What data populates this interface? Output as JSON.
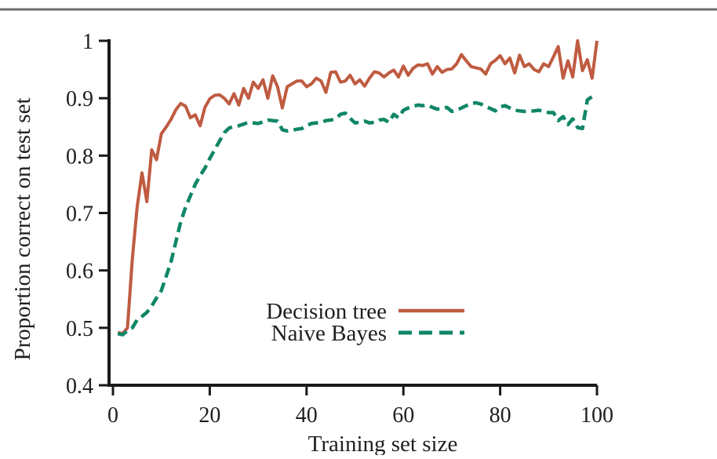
{
  "page": {
    "background": "#ffffff",
    "top_rule_color": "#6b6b6b",
    "axis_color": "#1a1a1a",
    "text_color": "#1f1f1f"
  },
  "chart_data": {
    "type": "line",
    "title": "",
    "xlabel": "Training set size",
    "ylabel": "Proportion correct on test set",
    "xlim": [
      0,
      100
    ],
    "ylim": [
      0.4,
      1.0
    ],
    "grid": false,
    "legend_position": "inside-bottom-center",
    "x_ticks": [
      0,
      20,
      40,
      60,
      80,
      100
    ],
    "x_tick_labels": [
      "0",
      "20",
      "40",
      "60",
      "80",
      "100"
    ],
    "y_ticks": [
      1.0,
      0.9,
      0.8,
      0.7,
      0.6,
      0.5,
      0.4
    ],
    "y_tick_labels": [
      "1",
      "0.9",
      "0.8",
      "0.7",
      "0.6",
      "0.5",
      "0.4"
    ],
    "x_range": {
      "from": 1,
      "to": 100,
      "step": 1
    },
    "series": [
      {
        "name": "Decision tree",
        "color": "#bf5b41",
        "style": "solid",
        "values": [
          0.492,
          0.49,
          0.5,
          0.62,
          0.71,
          0.77,
          0.72,
          0.81,
          0.793,
          0.838,
          0.85,
          0.863,
          0.88,
          0.891,
          0.886,
          0.866,
          0.871,
          0.852,
          0.884,
          0.899,
          0.905,
          0.906,
          0.9,
          0.89,
          0.908,
          0.888,
          0.917,
          0.9,
          0.928,
          0.917,
          0.932,
          0.9,
          0.939,
          0.92,
          0.883,
          0.92,
          0.925,
          0.93,
          0.93,
          0.92,
          0.925,
          0.935,
          0.93,
          0.91,
          0.945,
          0.946,
          0.928,
          0.93,
          0.94,
          0.925,
          0.932,
          0.921,
          0.935,
          0.946,
          0.944,
          0.937,
          0.944,
          0.949,
          0.937,
          0.956,
          0.94,
          0.952,
          0.958,
          0.957,
          0.96,
          0.942,
          0.955,
          0.945,
          0.95,
          0.951,
          0.96,
          0.976,
          0.965,
          0.955,
          0.953,
          0.951,
          0.942,
          0.96,
          0.966,
          0.974,
          0.96,
          0.97,
          0.944,
          0.975,
          0.955,
          0.96,
          0.95,
          0.946,
          0.96,
          0.955,
          0.972,
          0.99,
          0.935,
          0.965,
          0.937,
          1.0,
          0.948,
          0.967,
          0.935,
          1.0
        ]
      },
      {
        "name": "Naive Bayes",
        "color": "#108667",
        "style": "dashed",
        "values": [
          0.49,
          0.488,
          0.495,
          0.5,
          0.514,
          0.52,
          0.527,
          0.538,
          0.552,
          0.565,
          0.59,
          0.615,
          0.65,
          0.685,
          0.71,
          0.73,
          0.75,
          0.765,
          0.778,
          0.795,
          0.81,
          0.825,
          0.84,
          0.848,
          0.851,
          0.852,
          0.855,
          0.858,
          0.857,
          0.856,
          0.859,
          0.862,
          0.861,
          0.86,
          0.845,
          0.843,
          0.844,
          0.846,
          0.847,
          0.852,
          0.856,
          0.857,
          0.858,
          0.861,
          0.862,
          0.864,
          0.872,
          0.874,
          0.865,
          0.857,
          0.858,
          0.86,
          0.857,
          0.858,
          0.862,
          0.863,
          0.858,
          0.872,
          0.866,
          0.879,
          0.883,
          0.886,
          0.888,
          0.887,
          0.888,
          0.884,
          0.881,
          0.882,
          0.884,
          0.877,
          0.879,
          0.883,
          0.887,
          0.891,
          0.892,
          0.89,
          0.885,
          0.882,
          0.878,
          0.885,
          0.887,
          0.883,
          0.879,
          0.878,
          0.877,
          0.877,
          0.878,
          0.879,
          0.877,
          0.875,
          0.875,
          0.861,
          0.868,
          0.854,
          0.864,
          0.849,
          0.847,
          0.897,
          0.903,
          0.9
        ]
      }
    ]
  }
}
